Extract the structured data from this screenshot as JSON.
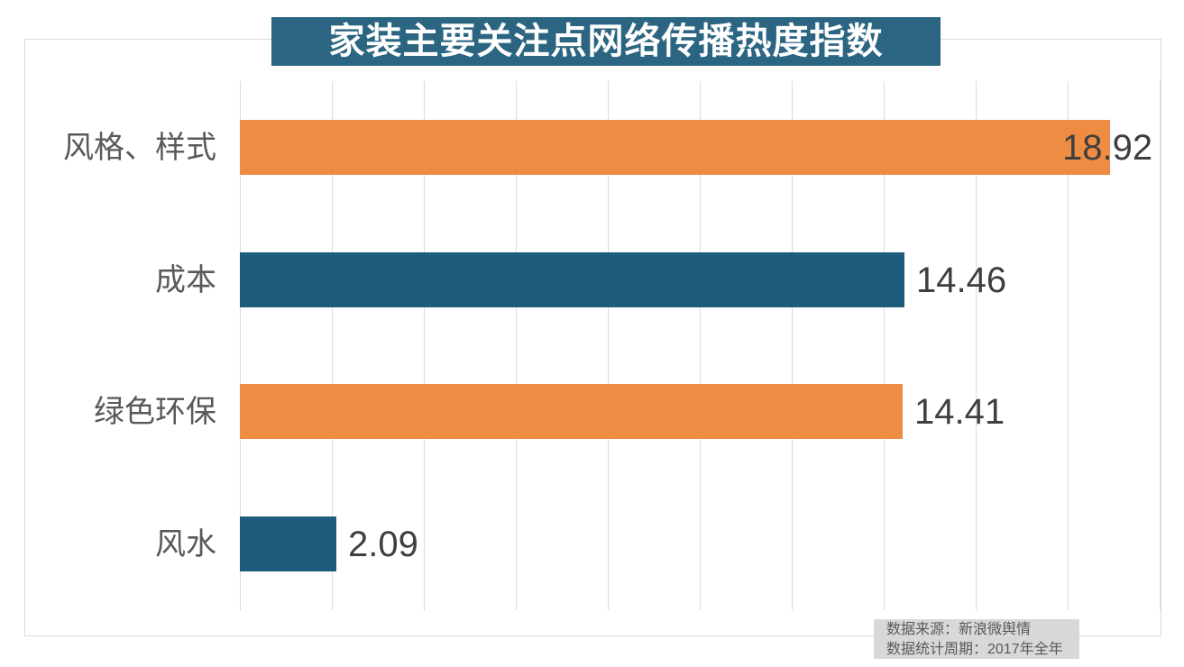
{
  "chart_data": {
    "type": "bar",
    "orientation": "horizontal",
    "title": "家装主要关注点网络传播热度指数",
    "categories": [
      "风格、样式",
      "成本",
      "绿色环保",
      "风水"
    ],
    "values": [
      18.92,
      14.46,
      14.41,
      2.09
    ],
    "value_labels": [
      "18.92",
      "14.46",
      "14.41",
      "2.09"
    ],
    "bar_colors": [
      "#ee8c44",
      "#1e5c7c",
      "#ee8c44",
      "#1e5c7c"
    ],
    "xlim": [
      0,
      20
    ],
    "gridline_step": 2,
    "grid": true,
    "legend": false,
    "xlabel": "",
    "ylabel": ""
  },
  "title_bar": {
    "text": "家装主要关注点网络传播热度指数",
    "background": "#2b6581",
    "text_color": "#ffffff"
  },
  "footer": {
    "source_line": "数据来源：新浪微舆情",
    "period_line": "数据统计周期：2017年全年"
  },
  "colors": {
    "orange": "#ee8c44",
    "teal": "#1e5c7c",
    "gridline": "#dadada",
    "frame_border": "#d9d9d9",
    "category_text": "#595959",
    "value_text": "#3f3f3f",
    "footer_bg": "#d8d8d8",
    "footer_text": "#595959"
  }
}
